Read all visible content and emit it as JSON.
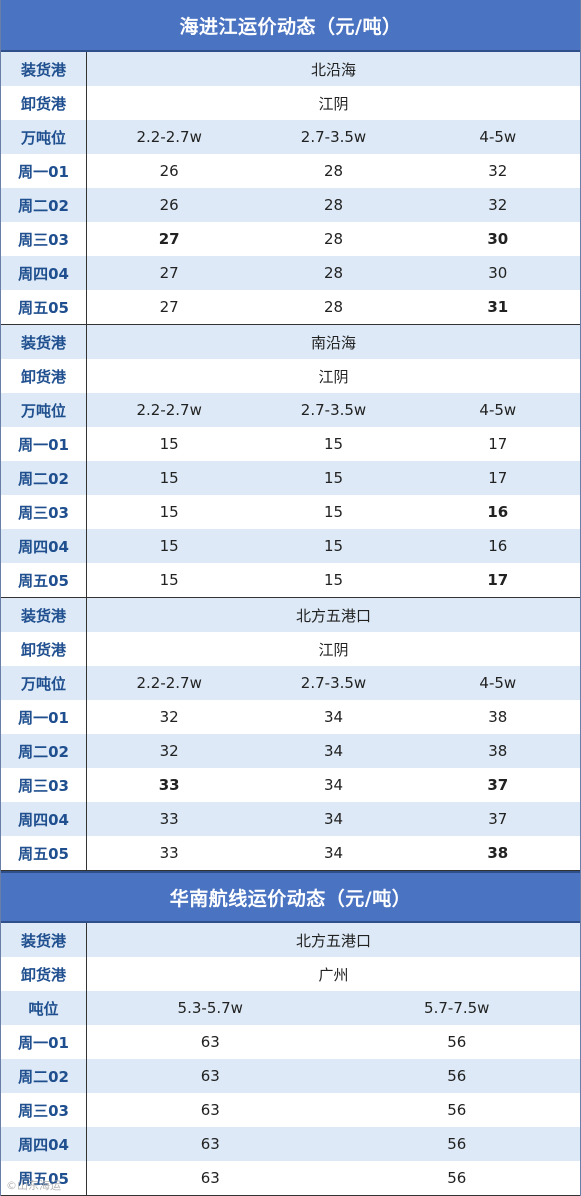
{
  "table1": {
    "title": "海进江运价动态（元/吨）",
    "blocks": [
      {
        "load_label": "装货港",
        "load_value": "北沿海",
        "unload_label": "卸货港",
        "unload_value": "江阴",
        "tonnage_label": "万吨位",
        "tonnage_values": [
          "2.2-2.7w",
          "2.7-3.5w",
          "4-5w"
        ],
        "days": [
          {
            "label": "周一01",
            "values": [
              "26",
              "28",
              "32"
            ],
            "bold": [
              false,
              false,
              false
            ]
          },
          {
            "label": "周二02",
            "values": [
              "26",
              "28",
              "32"
            ],
            "bold": [
              false,
              false,
              false
            ]
          },
          {
            "label": "周三03",
            "values": [
              "27",
              "28",
              "30"
            ],
            "bold": [
              true,
              false,
              true
            ]
          },
          {
            "label": "周四04",
            "values": [
              "27",
              "28",
              "30"
            ],
            "bold": [
              false,
              false,
              false
            ]
          },
          {
            "label": "周五05",
            "values": [
              "27",
              "28",
              "31"
            ],
            "bold": [
              false,
              false,
              true
            ]
          }
        ]
      },
      {
        "load_label": "装货港",
        "load_value": "南沿海",
        "unload_label": "卸货港",
        "unload_value": "江阴",
        "tonnage_label": "万吨位",
        "tonnage_values": [
          "2.2-2.7w",
          "2.7-3.5w",
          "4-5w"
        ],
        "days": [
          {
            "label": "周一01",
            "values": [
              "15",
              "15",
              "17"
            ],
            "bold": [
              false,
              false,
              false
            ]
          },
          {
            "label": "周二02",
            "values": [
              "15",
              "15",
              "17"
            ],
            "bold": [
              false,
              false,
              false
            ]
          },
          {
            "label": "周三03",
            "values": [
              "15",
              "15",
              "16"
            ],
            "bold": [
              false,
              false,
              true
            ]
          },
          {
            "label": "周四04",
            "values": [
              "15",
              "15",
              "16"
            ],
            "bold": [
              false,
              false,
              false
            ]
          },
          {
            "label": "周五05",
            "values": [
              "15",
              "15",
              "17"
            ],
            "bold": [
              false,
              false,
              true
            ]
          }
        ]
      },
      {
        "load_label": "装货港",
        "load_value": "北方五港口",
        "unload_label": "卸货港",
        "unload_value": "江阴",
        "tonnage_label": "万吨位",
        "tonnage_values": [
          "2.2-2.7w",
          "2.7-3.5w",
          "4-5w"
        ],
        "days": [
          {
            "label": "周一01",
            "values": [
              "32",
              "34",
              "38"
            ],
            "bold": [
              false,
              false,
              false
            ]
          },
          {
            "label": "周二02",
            "values": [
              "32",
              "34",
              "38"
            ],
            "bold": [
              false,
              false,
              false
            ]
          },
          {
            "label": "周三03",
            "values": [
              "33",
              "34",
              "37"
            ],
            "bold": [
              true,
              false,
              true
            ]
          },
          {
            "label": "周四04",
            "values": [
              "33",
              "34",
              "37"
            ],
            "bold": [
              false,
              false,
              false
            ]
          },
          {
            "label": "周五05",
            "values": [
              "33",
              "34",
              "38"
            ],
            "bold": [
              false,
              false,
              true
            ]
          }
        ]
      }
    ]
  },
  "table2": {
    "title": "华南航线运价动态（元/吨）",
    "load_label": "装货港",
    "load_value": "北方五港口",
    "unload_label": "卸货港",
    "unload_value": "广州",
    "tonnage_label": "吨位",
    "tonnage_values": [
      "5.3-5.7w",
      "5.7-7.5w"
    ],
    "days": [
      {
        "label": "周一01",
        "values": [
          "63",
          "56"
        ]
      },
      {
        "label": "周二02",
        "values": [
          "63",
          "56"
        ]
      },
      {
        "label": "周三03",
        "values": [
          "63",
          "56"
        ]
      },
      {
        "label": "周四04",
        "values": [
          "63",
          "56"
        ]
      },
      {
        "label": "周五05",
        "values": [
          "63",
          "56"
        ]
      }
    ]
  },
  "watermark": "©山东海运"
}
